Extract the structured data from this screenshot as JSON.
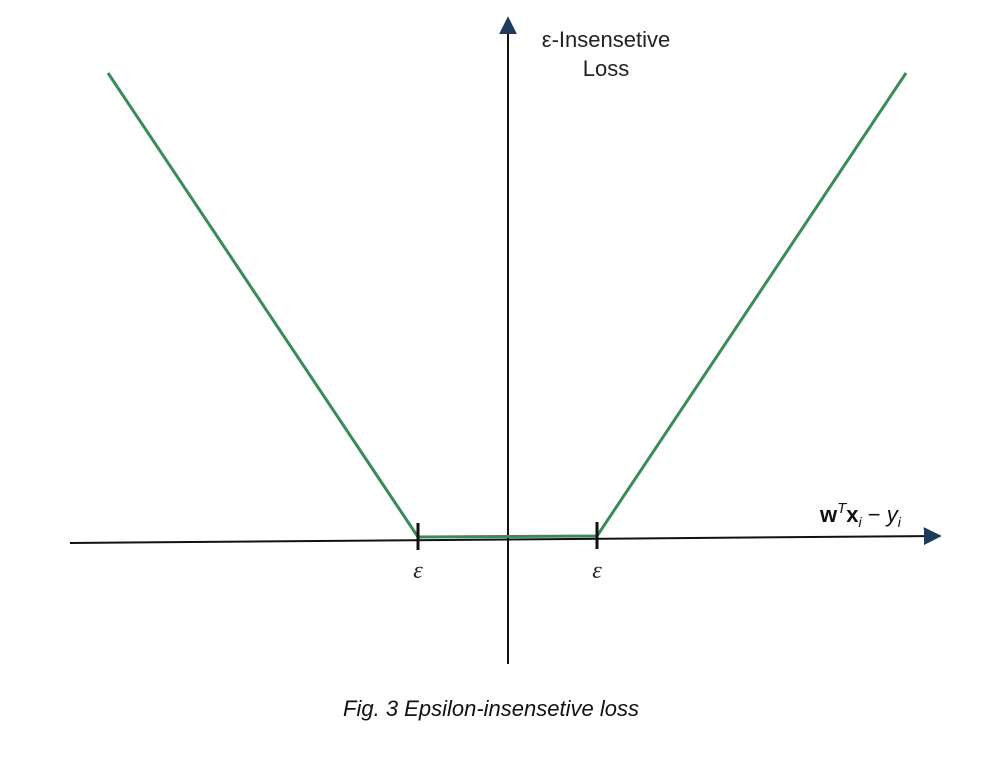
{
  "diagram": {
    "y_axis_label_line1": "ε-Insensetive",
    "y_axis_label_line2": "Loss",
    "x_axis_label": {
      "w": "w",
      "sup_T": "T",
      "x": "x",
      "sub_i1": "i",
      "minus": " − ",
      "y": "y",
      "sub_i2": "i"
    },
    "tick_left": "ε",
    "tick_right": "ε",
    "curve_color": "#3a8a5a",
    "axis_color": "#111111",
    "arrow_color": "#1f3a5a"
  },
  "caption": "Fig. 3 Epsilon-insensetive loss"
}
